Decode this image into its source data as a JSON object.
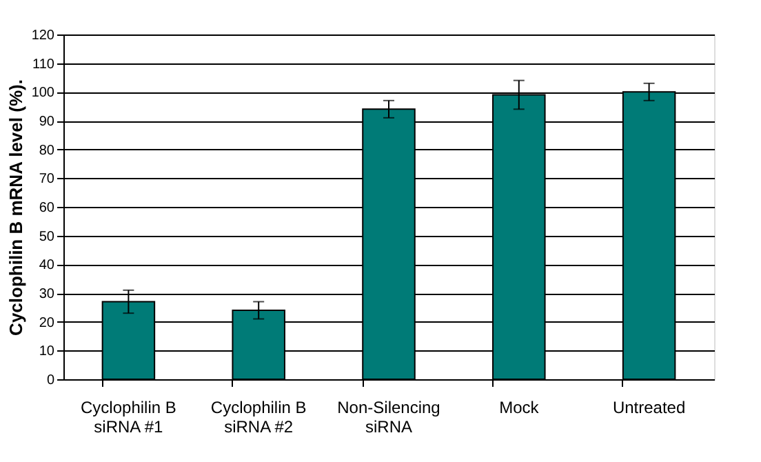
{
  "chart_data": {
    "type": "bar",
    "ylabel": "Cyclophilin B mRNA level (%).",
    "categories": [
      "Cyclophilin B siRNA #1",
      "Cyclophilin B siRNA #2",
      "Non-Silencing siRNA",
      "Mock",
      "Untreated"
    ],
    "values": [
      27,
      24,
      94,
      99,
      100
    ],
    "errors": [
      4,
      3,
      3,
      5,
      3
    ],
    "color": "#007b77",
    "ylim": [
      0,
      120
    ],
    "yticks": [
      0,
      10,
      20,
      30,
      40,
      50,
      60,
      70,
      80,
      90,
      100,
      110,
      120
    ],
    "grid": "y"
  }
}
